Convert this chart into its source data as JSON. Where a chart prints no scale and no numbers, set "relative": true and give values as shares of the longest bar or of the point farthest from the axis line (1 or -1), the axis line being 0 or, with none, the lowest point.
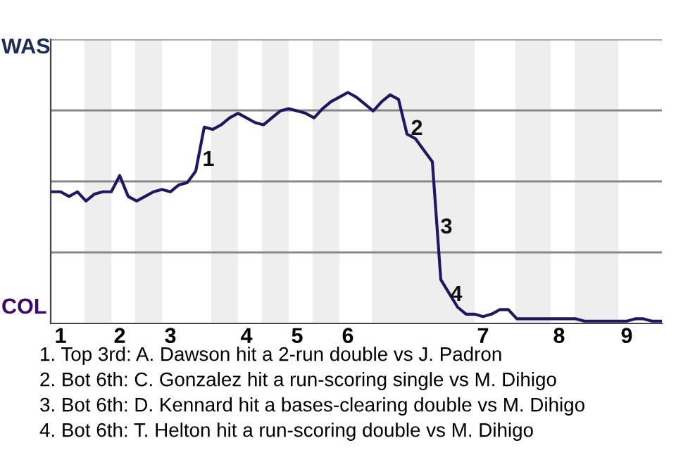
{
  "chart_data": {
    "type": "line",
    "relative": true,
    "categories": [
      null,
      "1",
      null,
      null,
      null,
      null,
      null,
      null,
      "2",
      null,
      null,
      null,
      null,
      null,
      "3",
      null,
      null,
      null,
      null,
      null,
      null,
      null,
      null,
      "4",
      null,
      null,
      null,
      null,
      null,
      "5",
      null,
      null,
      null,
      null,
      null,
      "6",
      null,
      null,
      null,
      null,
      null,
      null,
      null,
      null,
      null,
      null,
      null,
      null,
      null,
      null,
      null,
      "7",
      null,
      null,
      null,
      null,
      null,
      null,
      null,
      null,
      "8",
      null,
      null,
      null,
      null,
      null,
      null,
      null,
      "9",
      null,
      null,
      null,
      null
    ],
    "series": [
      {
        "color": "#231560",
        "values": [
          0.57,
          0.57,
          0.55,
          0.57,
          0.53,
          0.56,
          0.57,
          0.57,
          0.64,
          0.55,
          0.53,
          0.55,
          0.57,
          0.58,
          0.57,
          0.6,
          0.61,
          0.66,
          0.85,
          0.84,
          0.86,
          0.89,
          0.91,
          0.89,
          0.87,
          0.86,
          0.89,
          0.92,
          0.93,
          0.92,
          0.91,
          0.89,
          0.93,
          0.96,
          0.98,
          1,
          0.98,
          0.95,
          0.92,
          0.96,
          0.99,
          0.97,
          0.82,
          0.8,
          0.75,
          0.7,
          0.19,
          0.13,
          0.07,
          0.04,
          0.04,
          0.03,
          0.04,
          0.06,
          0.06,
          0.02,
          0.02,
          0.02,
          0.02,
          0.02,
          0.02,
          0.02,
          0.02,
          0.01,
          0.01,
          0.01,
          0.01,
          0.01,
          0.01,
          0.02,
          0.02,
          0.01,
          0.01
        ]
      }
    ],
    "grid": "y",
    "marker": "none",
    "line_style": "solid",
    "annotations": [
      "WAS",
      "COL",
      "1",
      "2",
      "3",
      "4",
      "1. Top 3rd: A. Dawson hit a 2-run double vs J. Padron",
      "2. Bot 6th: C. Gonzalez hit a run-scoring single vs M. Dihigo",
      "3. Bot 6th: D. Kennard hit a bases-clearing double vs M. Dihigo",
      "4. Bot 6th: T. Helton hit a run-scoring double vs M. Dihigo"
    ]
  }
}
